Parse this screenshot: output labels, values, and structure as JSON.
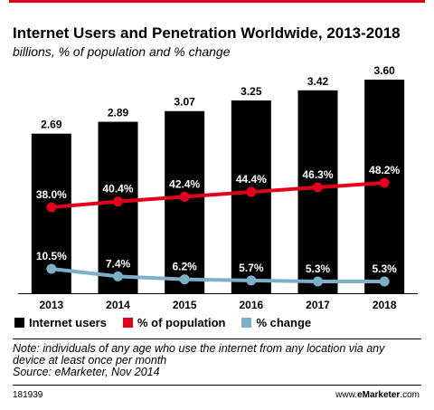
{
  "header": {
    "title": "Internet Users and Penetration Worldwide, 2013-2018",
    "subtitle": "billions, % of population and % change"
  },
  "colors": {
    "accent": "#e3001b",
    "bars": "#000000",
    "population_line": "#e3001b",
    "change_line": "#7eafc9",
    "divider": "#000000"
  },
  "chart_data": {
    "type": "bar",
    "categories": [
      "2013",
      "2014",
      "2015",
      "2016",
      "2017",
      "2018"
    ],
    "series": [
      {
        "name": "Internet users",
        "type": "bar",
        "values": [
          2.69,
          2.89,
          3.07,
          3.25,
          3.42,
          3.6
        ],
        "labels": [
          "2.69",
          "2.89",
          "3.07",
          "3.25",
          "3.42",
          "3.60"
        ]
      },
      {
        "name": "% of population",
        "type": "line",
        "values": [
          38.0,
          40.4,
          42.4,
          44.4,
          46.3,
          48.2
        ],
        "labels": [
          "38.0%",
          "40.4%",
          "42.4%",
          "44.4%",
          "46.3%",
          "48.2%"
        ]
      },
      {
        "name": "% change",
        "type": "line",
        "values": [
          10.5,
          7.4,
          6.2,
          5.7,
          5.3,
          5.3
        ],
        "labels": [
          "10.5%",
          "7.4%",
          "6.2%",
          "5.7%",
          "5.3%",
          "5.3%"
        ]
      }
    ],
    "legend": [
      "Internet users",
      "% of population",
      "% change"
    ],
    "legend_position": "bottom"
  },
  "footer": {
    "note": "Note: individuals of any age who use the internet from any location via any device at least once per month",
    "source": "Source: eMarketer, Nov 2014",
    "id": "181939",
    "brand_prefix": "www.",
    "brand_name": "eMarketer",
    "brand_suffix": ".com"
  }
}
